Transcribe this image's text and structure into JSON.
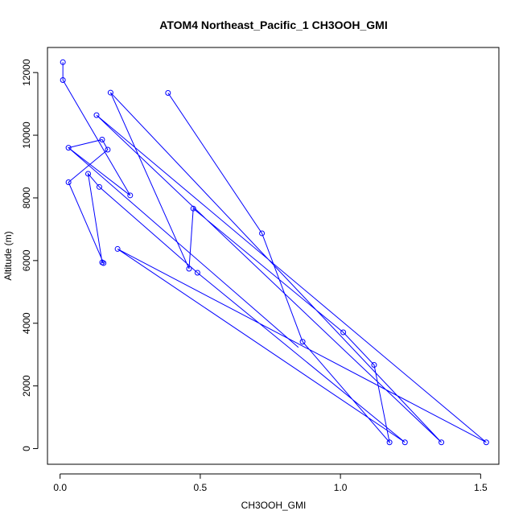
{
  "chart_data": {
    "type": "line",
    "title": "ATOM4 Northeast_Pacific_1 CH3OOH_GMI",
    "xlabel": "CH3OOH_GMI",
    "ylabel": "Altitude (m)",
    "xlim": [
      -0.045,
      1.565
    ],
    "ylim": [
      -500,
      12800
    ],
    "x_ticks": [
      0.0,
      0.5,
      1.0,
      1.5
    ],
    "x_tick_labels": [
      "0.0",
      "0.5",
      "1.0",
      "1.5"
    ],
    "y_ticks": [
      0,
      2000,
      4000,
      6000,
      8000,
      10000,
      12000
    ],
    "y_tick_labels": [
      "0",
      "2000",
      "4000",
      "6000",
      "8000",
      "10000",
      "12000"
    ],
    "grid": false,
    "color": "#0000ff",
    "series": [
      {
        "marker": "open-circle",
        "x": [
          0.01,
          0.01,
          0.25,
          0.03,
          0.15,
          0.17,
          0.03,
          0.155,
          0.15,
          0.1,
          0.14,
          0.49,
          1.23,
          0.205,
          1.52,
          0.13,
          1.36,
          0.18,
          0.46,
          0.475,
          1.01,
          1.12,
          1.175,
          0.865,
          0.72,
          0.385
        ],
        "y": [
          12330,
          11760,
          8080,
          9600,
          9860,
          9540,
          8500,
          5920,
          5940,
          8770,
          8350,
          5610,
          200,
          6370,
          200,
          10640,
          200,
          11360,
          5740,
          7660,
          3710,
          2670,
          200,
          3410,
          6870,
          11350
        ]
      },
      {
        "marker": "none",
        "x": [
          0.85,
          0.03
        ],
        "y": [
          3230,
          9600
        ]
      }
    ]
  }
}
